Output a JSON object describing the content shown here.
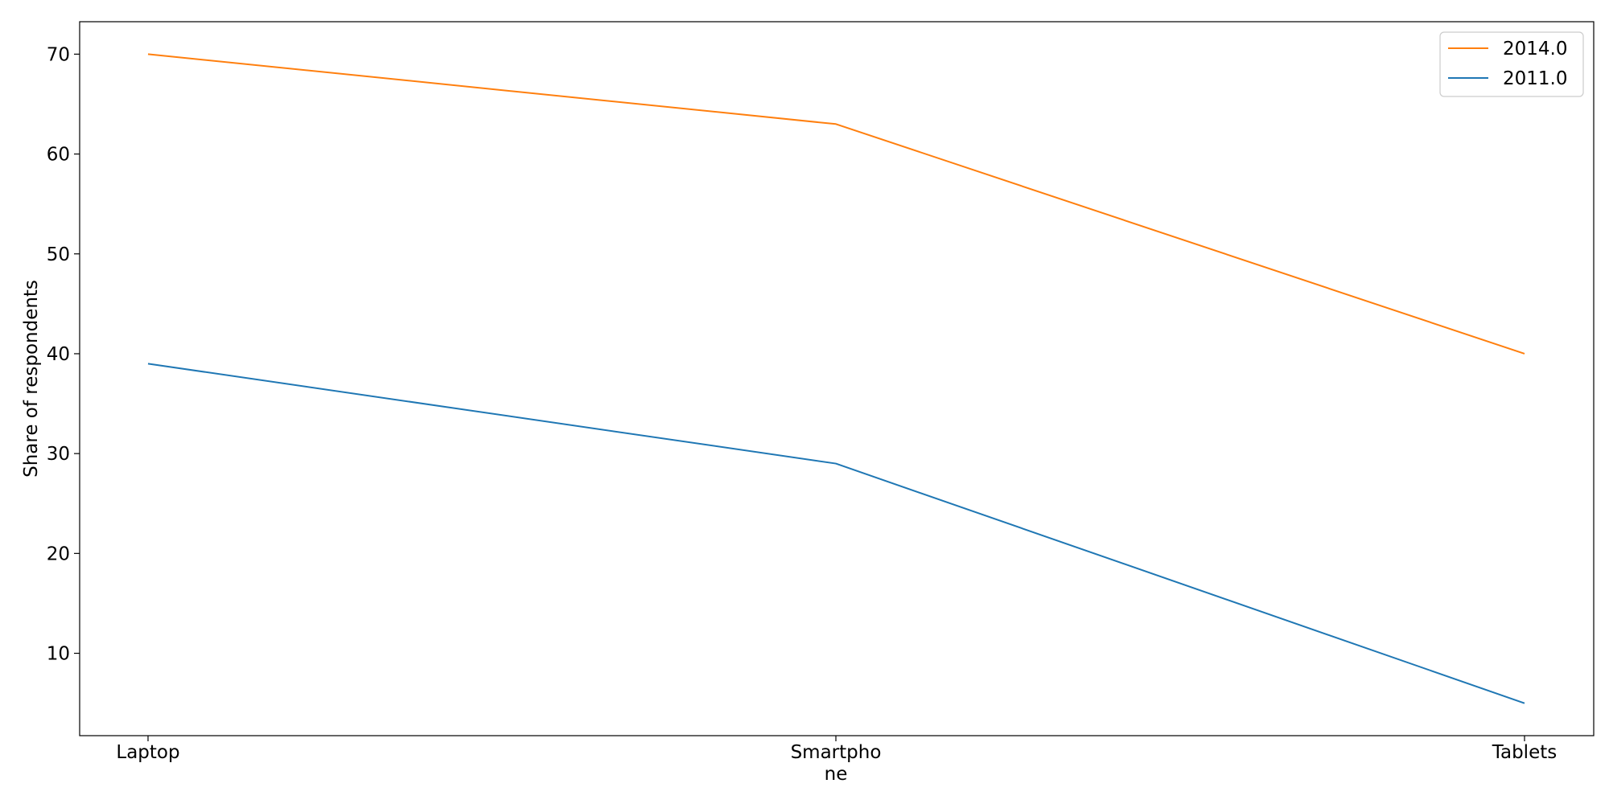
{
  "chart_data": {
    "type": "line",
    "categories": [
      "Laptop",
      "Smartphone",
      "Tablets"
    ],
    "category_lines": [
      [
        "Laptop"
      ],
      [
        "Smartpho",
        "ne"
      ],
      [
        "Tablets"
      ]
    ],
    "series": [
      {
        "name": "2014.0",
        "values": [
          70,
          63,
          40
        ],
        "color": "#ff7f0e"
      },
      {
        "name": "2011.0",
        "values": [
          39,
          29,
          5
        ],
        "color": "#1f77b4"
      }
    ],
    "ylabel": "Share of respondents",
    "xlabel": "",
    "title": "",
    "ylim": [
      1.75,
      73.25
    ],
    "yticks": [
      10,
      20,
      30,
      40,
      50,
      60,
      70
    ],
    "grid": false,
    "legend_position": "top-right"
  }
}
